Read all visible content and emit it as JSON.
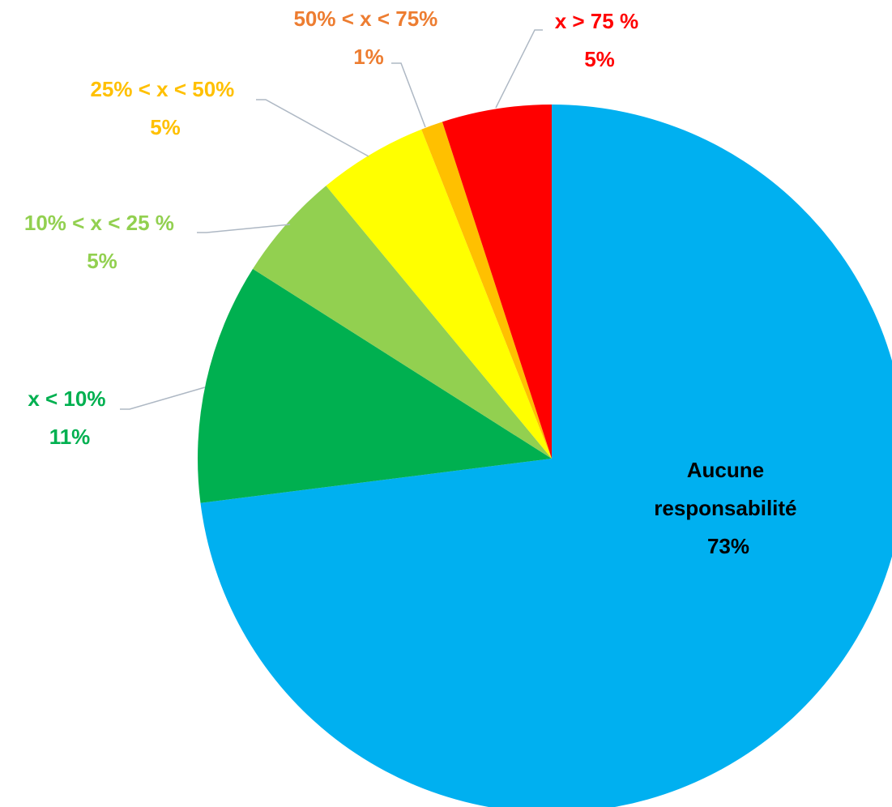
{
  "chart_data": {
    "type": "pie",
    "title": "",
    "start": "12 o'clock, clockwise",
    "slices": [
      {
        "label": "Aucune responsabilité",
        "label_lines": [
          "Aucune",
          "responsabilité"
        ],
        "value": 73,
        "value_label": "73%",
        "color": "#00B0F0",
        "label_color": "#000000"
      },
      {
        "label": "x < 10%",
        "value": 11,
        "value_label": "11%",
        "color": "#00B050",
        "label_color": "#00B050"
      },
      {
        "label": "10% < x < 25 %",
        "value": 5,
        "value_label": "5%",
        "color": "#92D050",
        "label_color": "#92D050"
      },
      {
        "label": "25% < x < 50%",
        "value": 5,
        "value_label": "5%",
        "color": "#FFFF00",
        "label_color": "#FFC000"
      },
      {
        "label": "50% < x < 75%",
        "value": 1,
        "value_label": "1%",
        "color": "#FFC000",
        "label_color": "#ED7D31"
      },
      {
        "label": "x > 75 %",
        "value": 5,
        "value_label": "5%",
        "color": "#FF0000",
        "label_color": "#FF0000"
      }
    ]
  }
}
